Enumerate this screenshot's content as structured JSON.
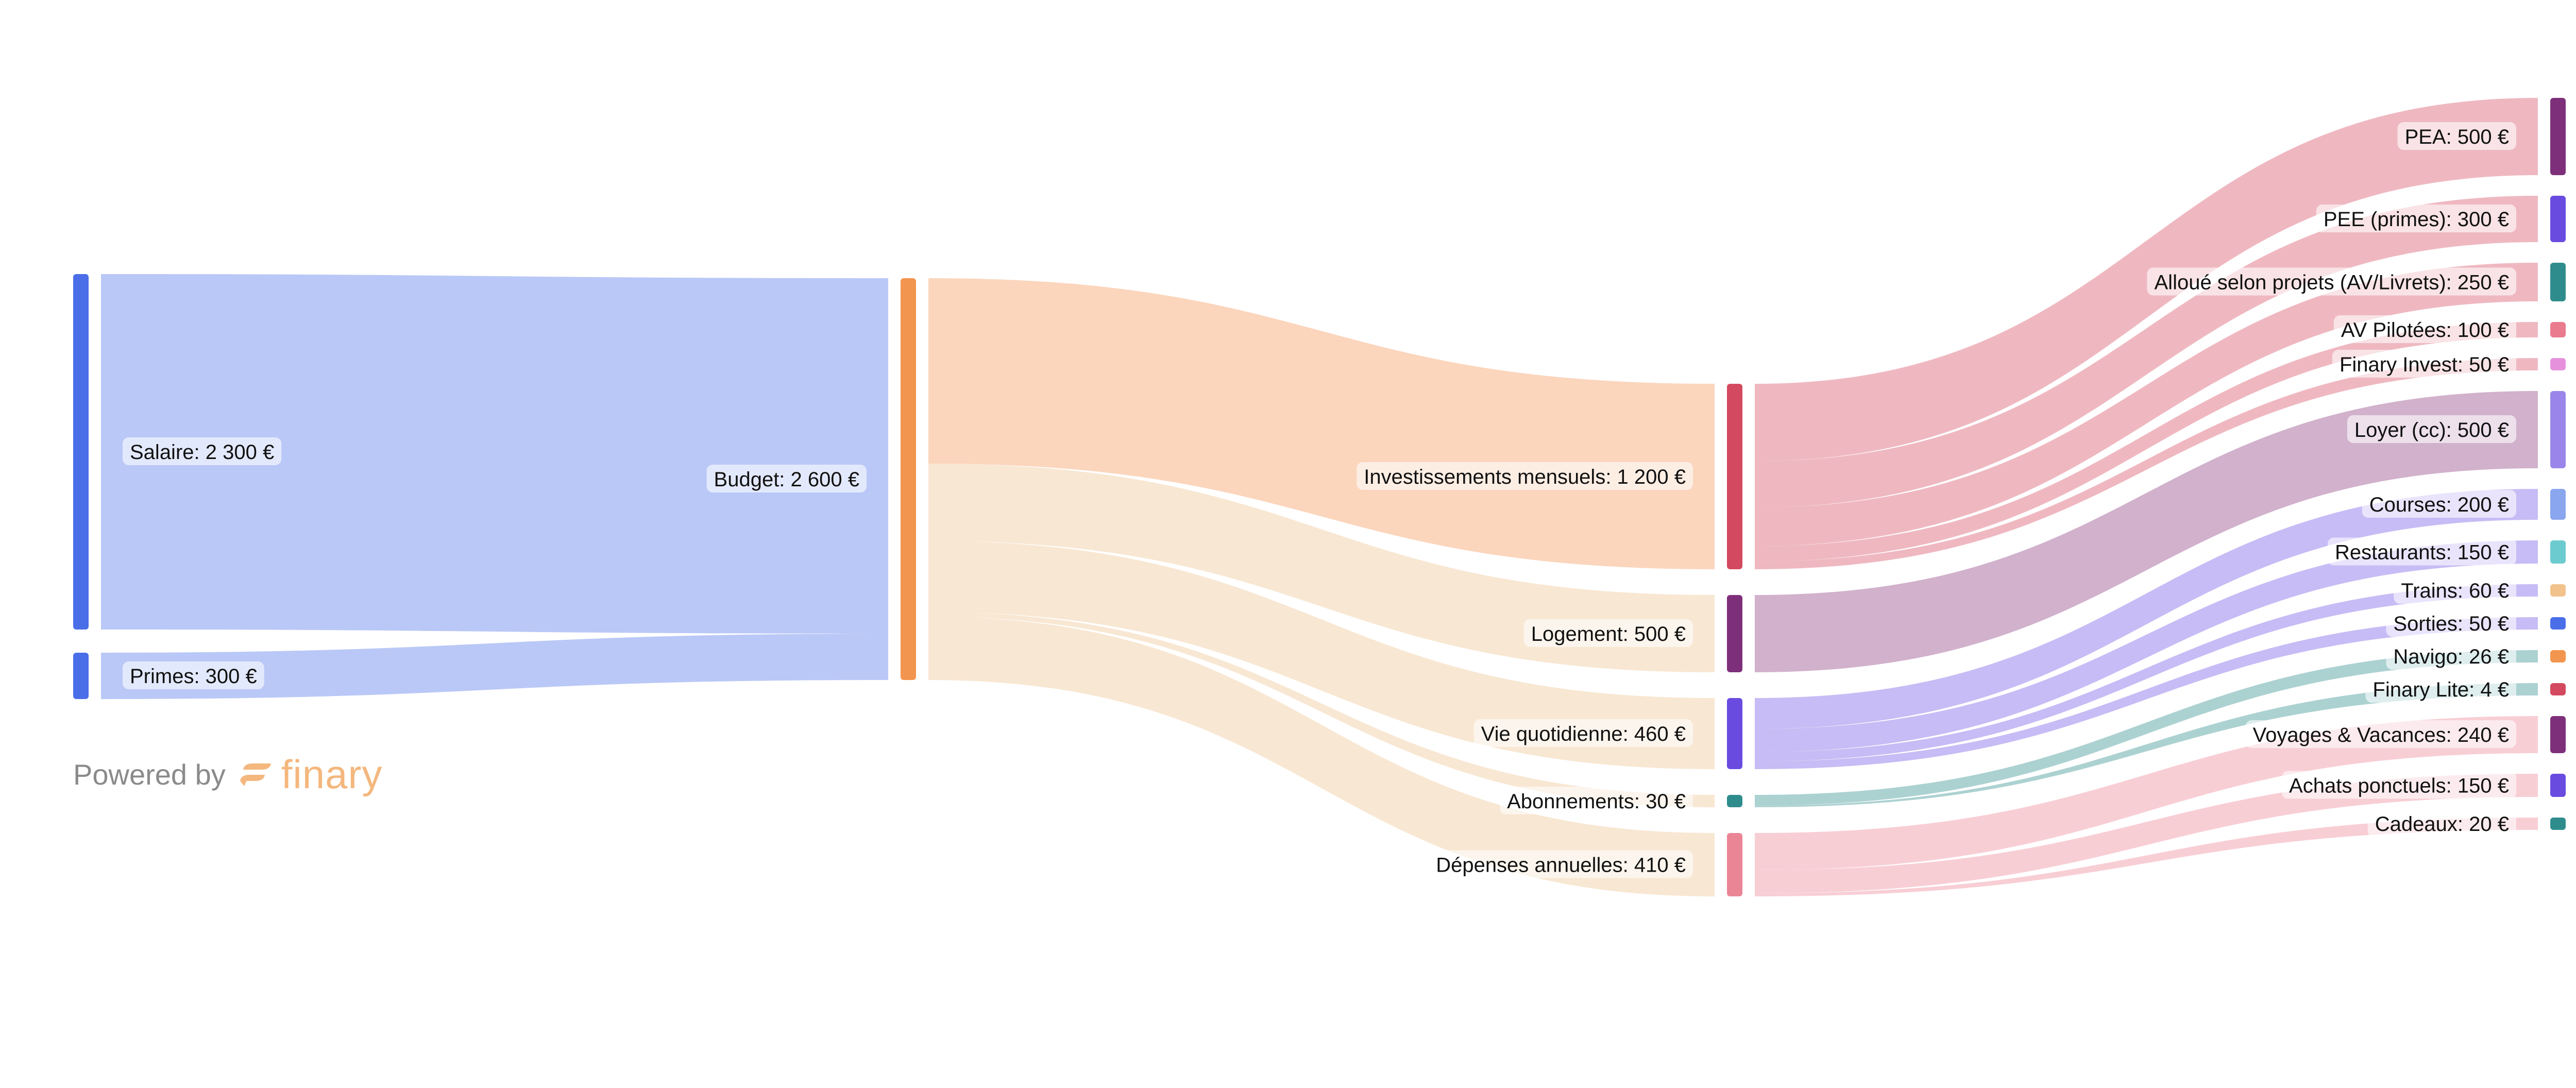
{
  "branding": {
    "powered_by": "Powered by",
    "brand_name": "finary",
    "brand_color": "#f4b77e"
  },
  "chart_data": {
    "type": "sankey",
    "currency": "€",
    "nodes": [
      {
        "id": "salaire",
        "label": "Salaire: 2 300 €",
        "value": 2300,
        "color": "#4a6ee8"
      },
      {
        "id": "primes",
        "label": "Primes: 300 €",
        "value": 300,
        "color": "#4a6ee8"
      },
      {
        "id": "budget",
        "label": "Budget: 2 600 €",
        "value": 2600,
        "color": "#f2954e"
      },
      {
        "id": "invest",
        "label": "Investissements mensuels: 1 200 €",
        "value": 1200,
        "color": "#d3495f"
      },
      {
        "id": "logement",
        "label": "Logement: 500 €",
        "value": 500,
        "color": "#7e2f7a"
      },
      {
        "id": "vie",
        "label": "Vie quotidienne: 460 €",
        "value": 460,
        "color": "#6a4be0"
      },
      {
        "id": "abonnements",
        "label": "Abonnements: 30 €",
        "value": 30,
        "color": "#2f8c8c"
      },
      {
        "id": "depenses",
        "label": "Dépenses annuelles: 410 €",
        "value": 410,
        "color": "#ea8596"
      },
      {
        "id": "pea",
        "label": "PEA: 500 €",
        "value": 500,
        "color": "#7e2f7a"
      },
      {
        "id": "pee",
        "label": "PEE (primes): 300 €",
        "value": 300,
        "color": "#6a4be0"
      },
      {
        "id": "alloue",
        "label": "Alloué selon projets (AV/Livrets): 250 €",
        "value": 250,
        "color": "#2f8c8c"
      },
      {
        "id": "av",
        "label": "AV Pilotées: 100 €",
        "value": 100,
        "color": "#ea7a8e"
      },
      {
        "id": "finaryinvest",
        "label": "Finary Invest: 50 €",
        "value": 50,
        "color": "#e691dc"
      },
      {
        "id": "loyer",
        "label": "Loyer (cc): 500 €",
        "value": 500,
        "color": "#9a86ea"
      },
      {
        "id": "courses",
        "label": "Courses: 200 €",
        "value": 200,
        "color": "#8aa6ee"
      },
      {
        "id": "restaurants",
        "label": "Restaurants: 150 €",
        "value": 150,
        "color": "#6ccbcf"
      },
      {
        "id": "trains",
        "label": "Trains: 60 €",
        "value": 60,
        "color": "#f2c28c"
      },
      {
        "id": "sorties",
        "label": "Sorties: 50 €",
        "value": 50,
        "color": "#4a6ee8"
      },
      {
        "id": "navigo",
        "label": "Navigo: 26 €",
        "value": 26,
        "color": "#f2954e"
      },
      {
        "id": "finarylite",
        "label": "Finary Lite: 4 €",
        "value": 4,
        "color": "#d3495f"
      },
      {
        "id": "voyages",
        "label": "Voyages & Vacances: 240 €",
        "value": 240,
        "color": "#7e2f7a"
      },
      {
        "id": "achats",
        "label": "Achats ponctuels: 150 €",
        "value": 150,
        "color": "#6a4be0"
      },
      {
        "id": "cadeaux",
        "label": "Cadeaux: 20 €",
        "value": 20,
        "color": "#2f8c8c"
      }
    ],
    "links": [
      {
        "source": "salaire",
        "target": "budget",
        "value": 2300
      },
      {
        "source": "primes",
        "target": "budget",
        "value": 300
      },
      {
        "source": "budget",
        "target": "invest",
        "value": 1200
      },
      {
        "source": "budget",
        "target": "logement",
        "value": 500
      },
      {
        "source": "budget",
        "target": "vie",
        "value": 460
      },
      {
        "source": "budget",
        "target": "abonnements",
        "value": 30
      },
      {
        "source": "budget",
        "target": "depenses",
        "value": 410
      },
      {
        "source": "invest",
        "target": "pea",
        "value": 500
      },
      {
        "source": "invest",
        "target": "pee",
        "value": 300
      },
      {
        "source": "invest",
        "target": "alloue",
        "value": 250
      },
      {
        "source": "invest",
        "target": "av",
        "value": 100
      },
      {
        "source": "invest",
        "target": "finaryinvest",
        "value": 50
      },
      {
        "source": "logement",
        "target": "loyer",
        "value": 500
      },
      {
        "source": "vie",
        "target": "courses",
        "value": 200
      },
      {
        "source": "vie",
        "target": "restaurants",
        "value": 150
      },
      {
        "source": "vie",
        "target": "trains",
        "value": 60
      },
      {
        "source": "vie",
        "target": "sorties",
        "value": 50
      },
      {
        "source": "abonnements",
        "target": "navigo",
        "value": 26
      },
      {
        "source": "abonnements",
        "target": "finarylite",
        "value": 4
      },
      {
        "source": "depenses",
        "target": "voyages",
        "value": 240
      },
      {
        "source": "depenses",
        "target": "achats",
        "value": 150
      },
      {
        "source": "depenses",
        "target": "cadeaux",
        "value": 20
      }
    ]
  }
}
